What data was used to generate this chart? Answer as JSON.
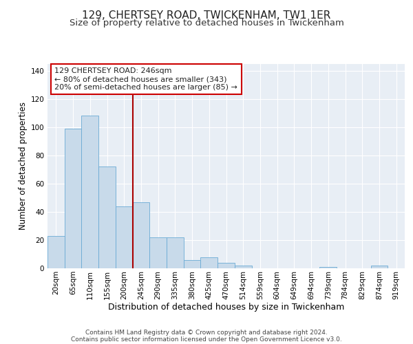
{
  "title": "129, CHERTSEY ROAD, TWICKENHAM, TW1 1ER",
  "subtitle": "Size of property relative to detached houses in Twickenham",
  "xlabel": "Distribution of detached houses by size in Twickenham",
  "ylabel": "Number of detached properties",
  "categories": [
    "20sqm",
    "65sqm",
    "110sqm",
    "155sqm",
    "200sqm",
    "245sqm",
    "290sqm",
    "335sqm",
    "380sqm",
    "425sqm",
    "470sqm",
    "514sqm",
    "559sqm",
    "604sqm",
    "649sqm",
    "694sqm",
    "739sqm",
    "784sqm",
    "829sqm",
    "874sqm",
    "919sqm"
  ],
  "values": [
    23,
    99,
    108,
    72,
    44,
    47,
    22,
    22,
    6,
    8,
    4,
    2,
    0,
    0,
    0,
    0,
    1,
    0,
    0,
    2,
    0
  ],
  "bar_color": "#c8daea",
  "bar_edge_color": "#6aaad4",
  "background_color": "#e8eef5",
  "grid_color": "#ffffff",
  "vline_x_index": 4.5,
  "vline_color": "#aa0000",
  "annotation_text": "129 CHERTSEY ROAD: 246sqm\n← 80% of detached houses are smaller (343)\n20% of semi-detached houses are larger (85) →",
  "annotation_box_color": "#ffffff",
  "annotation_box_edge": "#cc0000",
  "ylim": [
    0,
    145
  ],
  "yticks": [
    0,
    20,
    40,
    60,
    80,
    100,
    120,
    140
  ],
  "footer_line1": "Contains HM Land Registry data © Crown copyright and database right 2024.",
  "footer_line2": "Contains public sector information licensed under the Open Government Licence v3.0.",
  "title_fontsize": 11,
  "subtitle_fontsize": 9.5,
  "xlabel_fontsize": 9,
  "ylabel_fontsize": 8.5,
  "tick_fontsize": 7.5,
  "annotation_fontsize": 8,
  "footer_fontsize": 6.5
}
